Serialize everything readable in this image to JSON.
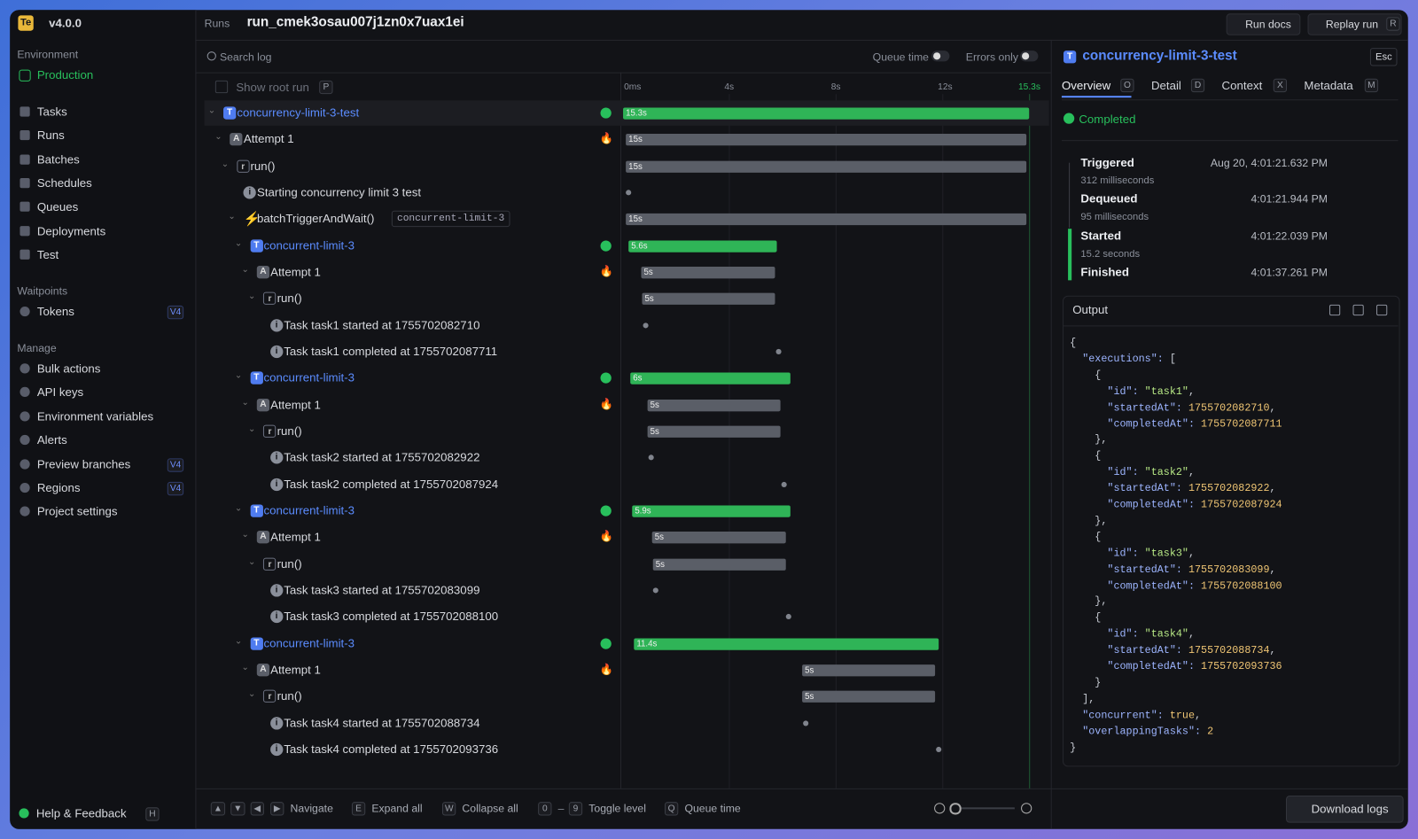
{
  "sidebar": {
    "org_badge": "Te",
    "version": "v4.0.0",
    "environment_label": "Environment",
    "environment": "Production",
    "nav": [
      "Tasks",
      "Runs",
      "Batches",
      "Schedules",
      "Queues",
      "Deployments",
      "Test"
    ],
    "waitpoints_label": "Waitpoints",
    "waitpoints": [
      {
        "label": "Tokens",
        "badge": "V4"
      }
    ],
    "manage_label": "Manage",
    "manage": [
      {
        "label": "Bulk actions"
      },
      {
        "label": "API keys"
      },
      {
        "label": "Environment variables"
      },
      {
        "label": "Alerts"
      },
      {
        "label": "Preview branches",
        "badge": "V4"
      },
      {
        "label": "Regions",
        "badge": "V4"
      },
      {
        "label": "Project settings"
      }
    ],
    "help": "Help & Feedback",
    "help_key": "H"
  },
  "header": {
    "breadcrumb": "Runs",
    "run_id": "run_cmek3osau007j1zn0x7uax1ei",
    "run_docs": "Run docs",
    "replay": "Replay run",
    "replay_key": "R"
  },
  "log": {
    "search": "Search log",
    "queue_time": "Queue time",
    "errors_only": "Errors only",
    "show_root": "Show root run",
    "show_root_key": "P",
    "ticks": [
      "0ms",
      "4s",
      "8s",
      "12s",
      "15.3s"
    ],
    "rows": [
      {
        "kind": "task",
        "label": "concurrency-limit-3-test",
        "duration": "15.3s"
      },
      {
        "kind": "attempt",
        "label": "Attempt 1",
        "duration": "15s"
      },
      {
        "kind": "run",
        "label": "run()",
        "duration": "15s"
      },
      {
        "kind": "log",
        "label": "Starting concurrency limit 3 test"
      },
      {
        "kind": "trigger",
        "label": "batchTriggerAndWait()",
        "tag": "concurrent-limit-3",
        "duration": "15s"
      },
      {
        "kind": "task",
        "label": "concurrent-limit-3",
        "duration": "5.6s"
      },
      {
        "kind": "attempt",
        "label": "Attempt 1",
        "duration": "5s"
      },
      {
        "kind": "run",
        "label": "run()",
        "duration": "5s"
      },
      {
        "kind": "log",
        "label": "Task task1 started at 1755702082710"
      },
      {
        "kind": "log",
        "label": "Task task1 completed at 1755702087711"
      },
      {
        "kind": "task",
        "label": "concurrent-limit-3",
        "duration": "6s"
      },
      {
        "kind": "attempt",
        "label": "Attempt 1",
        "duration": "5s"
      },
      {
        "kind": "run",
        "label": "run()",
        "duration": "5s"
      },
      {
        "kind": "log",
        "label": "Task task2 started at 1755702082922"
      },
      {
        "kind": "log",
        "label": "Task task2 completed at 1755702087924"
      },
      {
        "kind": "task",
        "label": "concurrent-limit-3",
        "duration": "5.9s"
      },
      {
        "kind": "attempt",
        "label": "Attempt 1",
        "duration": "5s"
      },
      {
        "kind": "run",
        "label": "run()",
        "duration": "5s"
      },
      {
        "kind": "log",
        "label": "Task task3 started at 1755702083099"
      },
      {
        "kind": "log",
        "label": "Task task3 completed at 1755702088100"
      },
      {
        "kind": "task",
        "label": "concurrent-limit-3",
        "duration": "11.4s"
      },
      {
        "kind": "attempt",
        "label": "Attempt 1",
        "duration": "5s"
      },
      {
        "kind": "run",
        "label": "run()",
        "duration": "5s"
      },
      {
        "kind": "log",
        "label": "Task task4 started at 1755702088734"
      },
      {
        "kind": "log",
        "label": "Task task4 completed at 1755702093736"
      }
    ]
  },
  "shortcuts": [
    {
      "keys": [
        "▲",
        "▼",
        "◀",
        "▶"
      ],
      "label": "Navigate"
    },
    {
      "keys": [
        "E"
      ],
      "label": "Expand all"
    },
    {
      "keys": [
        "W"
      ],
      "label": "Collapse all"
    },
    {
      "keys": [
        "0",
        "–",
        "9"
      ],
      "label": "Toggle level"
    },
    {
      "keys": [
        "Q"
      ],
      "label": "Queue time"
    }
  ],
  "download": "Download logs",
  "detail": {
    "title": "concurrency-limit-3-test",
    "esc": "Esc",
    "tabs": [
      {
        "label": "Overview",
        "key": "O"
      },
      {
        "label": "Detail",
        "key": "D"
      },
      {
        "label": "Context",
        "key": "X"
      },
      {
        "label": "Metadata",
        "key": "M"
      }
    ],
    "status": "Completed",
    "events": [
      {
        "name": "Triggered",
        "duration": "312 milliseconds",
        "time": "Aug 20, 4:01:21.632 PM"
      },
      {
        "name": "Dequeued",
        "duration": "95 milliseconds",
        "time": "4:01:21.944 PM"
      },
      {
        "name": "Started",
        "duration": "15.2 seconds",
        "time": "4:01:22.039 PM"
      },
      {
        "name": "Finished",
        "time": "4:01:37.261 PM"
      }
    ]
  },
  "output": {
    "title": "Output",
    "lines": [
      "{",
      "  \"executions\": [",
      "    {",
      "      \"id\": \"task1\",",
      "      \"startedAt\": 1755702082710,",
      "      \"completedAt\": 1755702087711",
      "    },",
      "    {",
      "      \"id\": \"task2\",",
      "      \"startedAt\": 1755702082922,",
      "      \"completedAt\": 1755702087924",
      "    },",
      "    {",
      "      \"id\": \"task3\",",
      "      \"startedAt\": 1755702083099,",
      "      \"completedAt\": 1755702088100",
      "    },",
      "    {",
      "      \"id\": \"task4\",",
      "      \"startedAt\": 1755702088734,",
      "      \"completedAt\": 1755702093736",
      "    }",
      "  ],",
      "  \"concurrent\": true,",
      "  \"overlappingTasks\": 2",
      "}"
    ]
  }
}
